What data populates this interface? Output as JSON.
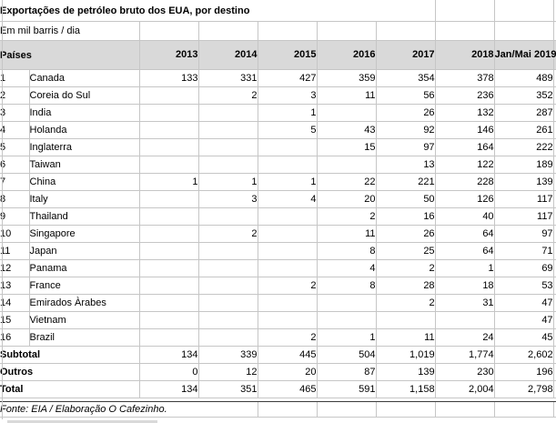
{
  "title": "Exportações de petróleo bruto dos EUA, por destino",
  "subtitle": "Em mil barris / dia",
  "table": {
    "corner_header": "Países",
    "year_headers": [
      "2013",
      "2014",
      "2015",
      "2016",
      "2017",
      "2018",
      "Jan/Mai\n2019"
    ],
    "rows": [
      {
        "num": "1",
        "country": "Canada",
        "values": [
          "133",
          "331",
          "427",
          "359",
          "354",
          "378",
          "489"
        ]
      },
      {
        "num": "2",
        "country": "Coreia do Sul",
        "values": [
          "",
          "2",
          "3",
          "11",
          "56",
          "236",
          "352"
        ]
      },
      {
        "num": "3",
        "country": "India",
        "values": [
          "",
          "",
          "1",
          "",
          "26",
          "132",
          "287"
        ]
      },
      {
        "num": "4",
        "country": "Holanda",
        "values": [
          "",
          "",
          "5",
          "43",
          "92",
          "146",
          "261"
        ]
      },
      {
        "num": "5",
        "country": "Inglaterra",
        "values": [
          "",
          "",
          "",
          "15",
          "97",
          "164",
          "222"
        ]
      },
      {
        "num": "6",
        "country": "Taiwan",
        "values": [
          "",
          "",
          "",
          "",
          "13",
          "122",
          "189"
        ]
      },
      {
        "num": "7",
        "country": "China",
        "values": [
          "1",
          "1",
          "1",
          "22",
          "221",
          "228",
          "139"
        ]
      },
      {
        "num": "8",
        "country": "Italy",
        "values": [
          "",
          "3",
          "4",
          "20",
          "50",
          "126",
          "117"
        ]
      },
      {
        "num": "9",
        "country": "Thailand",
        "values": [
          "",
          "",
          "",
          "2",
          "16",
          "40",
          "117"
        ]
      },
      {
        "num": "10",
        "country": "Singapore",
        "values": [
          "",
          "2",
          "",
          "11",
          "26",
          "64",
          "97"
        ]
      },
      {
        "num": "11",
        "country": "Japan",
        "values": [
          "",
          "",
          "",
          "8",
          "25",
          "64",
          "71"
        ]
      },
      {
        "num": "12",
        "country": "Panama",
        "values": [
          "",
          "",
          "",
          "4",
          "2",
          "1",
          "69"
        ]
      },
      {
        "num": "13",
        "country": "France",
        "values": [
          "",
          "",
          "2",
          "8",
          "28",
          "18",
          "53"
        ]
      },
      {
        "num": "14",
        "country": "Emirados Àrabes",
        "values": [
          "",
          "",
          "",
          "",
          "2",
          "31",
          "47"
        ]
      },
      {
        "num": "15",
        "country": "Vietnam",
        "values": [
          "",
          "",
          "",
          "",
          "",
          "",
          "47"
        ]
      },
      {
        "num": "16",
        "country": "Brazil",
        "values": [
          "",
          "",
          "2",
          "1",
          "11",
          "24",
          "45"
        ]
      }
    ],
    "summary_rows": [
      {
        "label": "Subtotal",
        "values": [
          "134",
          "339",
          "445",
          "504",
          "1,019",
          "1,774",
          "2,602"
        ]
      },
      {
        "label": "Outros",
        "values": [
          "0",
          "12",
          "20",
          "87",
          "139",
          "230",
          "196"
        ]
      },
      {
        "label": "Total",
        "values": [
          "134",
          "351",
          "465",
          "591",
          "1,158",
          "2,004",
          "2,798"
        ]
      }
    ]
  },
  "footer": {
    "source": "Fonte: EIA / Elaboração O Cafezinho."
  },
  "colors": {
    "header_bg": "#d9d9d9",
    "gridline": "#c6c6c6",
    "dark_border": "#3c3c3c",
    "text": "#000000"
  }
}
